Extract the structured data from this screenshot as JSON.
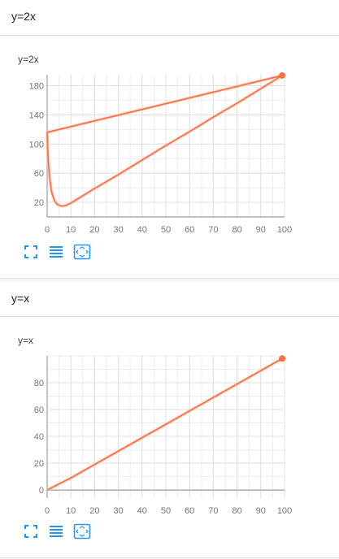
{
  "sections": [
    {
      "header": "y=2x",
      "card_title": "y=2x",
      "toolbar": {
        "icons": [
          "fullscreen-icon",
          "data-table-icon",
          "fit-domain-icon"
        ]
      }
    },
    {
      "header": "y=x",
      "card_title": "y=x",
      "toolbar": {
        "icons": [
          "fullscreen-icon",
          "data-table-icon",
          "fit-domain-icon"
        ]
      }
    }
  ],
  "colors": {
    "series": "#ff7043",
    "grid": "#e0e0e0",
    "axis": "#9e9e9e",
    "tick_text": "#757575",
    "icon": "#2196f3"
  },
  "chart_data": [
    {
      "type": "line",
      "title": "y=2x",
      "xlabel": "",
      "ylabel": "",
      "xlim": [
        0,
        100
      ],
      "ylim": [
        0,
        195
      ],
      "xticks": [
        0,
        10,
        20,
        30,
        40,
        50,
        60,
        70,
        80,
        90,
        100
      ],
      "yticks": [
        20,
        60,
        100,
        140,
        180
      ],
      "x": [
        0,
        99,
        0,
        0.2,
        0.5,
        1,
        1.5,
        2,
        3,
        4,
        5,
        6,
        7,
        8,
        10,
        20,
        30,
        40,
        50,
        60,
        70,
        80,
        90,
        99
      ],
      "y": [
        116,
        194,
        116,
        95,
        75,
        55,
        42,
        33,
        23,
        18,
        16,
        15,
        15,
        16,
        19,
        39,
        58,
        78,
        98,
        117,
        137,
        156,
        176,
        194
      ],
      "grid": true
    },
    {
      "type": "line",
      "title": "y=x",
      "xlabel": "",
      "ylabel": "",
      "xlim": [
        0,
        100
      ],
      "ylim": [
        -6,
        100
      ],
      "xticks": [
        0,
        10,
        20,
        30,
        40,
        50,
        60,
        70,
        80,
        90,
        100
      ],
      "yticks": [
        0,
        20,
        40,
        60,
        80
      ],
      "x": [
        0,
        10,
        20,
        30,
        40,
        50,
        60,
        70,
        80,
        90,
        99
      ],
      "y": [
        0,
        9,
        19,
        29,
        39,
        49,
        59,
        69,
        79,
        89,
        98
      ],
      "grid": true
    }
  ]
}
